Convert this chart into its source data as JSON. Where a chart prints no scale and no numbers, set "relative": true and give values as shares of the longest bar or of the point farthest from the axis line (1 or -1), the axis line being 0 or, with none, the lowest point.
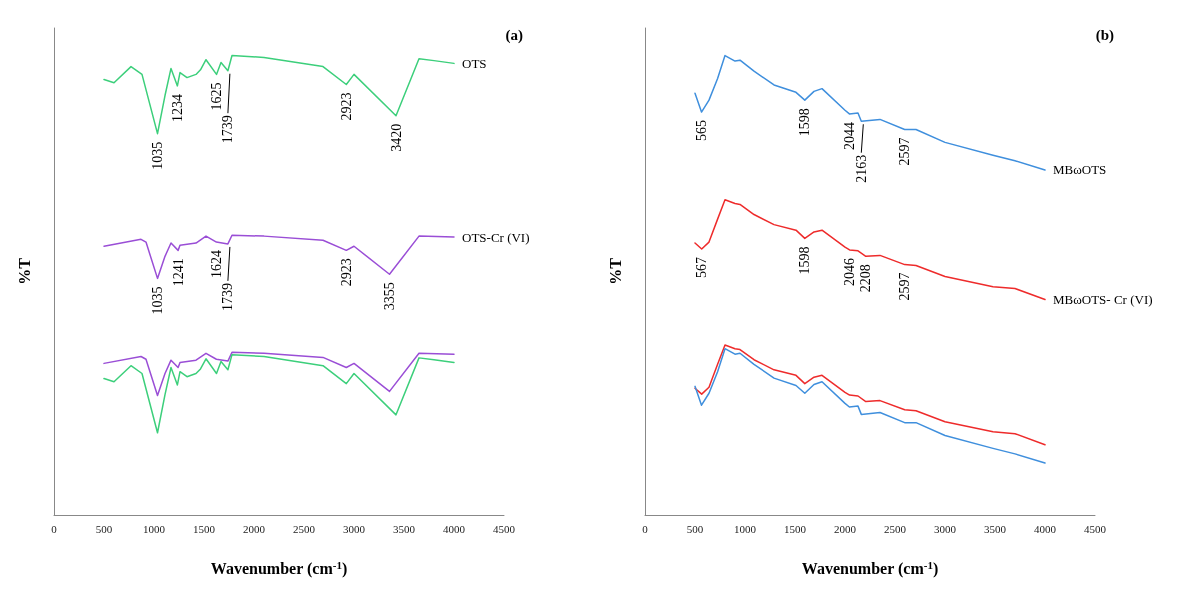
{
  "chart_data": [
    {
      "type": "line",
      "title": "(a)",
      "xlabel": "Wavenumber (cm$^{-1}$)",
      "ylabel": "%T",
      "relative": true,
      "xlim": [
        0,
        4500
      ],
      "xticks": [
        0,
        500,
        1000,
        1500,
        2000,
        2500,
        3000,
        3500,
        4000,
        4500
      ],
      "grid": false,
      "legend": false,
      "marker": "none",
      "series": [
        {
          "name": "OTS",
          "color": "#3ccf7b",
          "x": [
            500,
            600,
            770,
            880,
            1035,
            1110,
            1170,
            1234,
            1260,
            1330,
            1420,
            1465,
            1520,
            1625,
            1670,
            1739,
            1780,
            2100,
            2690,
            2923,
            3000,
            3420,
            3650,
            3800,
            4000
          ],
          "values": [
            0.948,
            0.941,
            0.976,
            0.959,
            0.83,
            0.913,
            0.972,
            0.934,
            0.963,
            0.952,
            0.959,
            0.969,
            0.991,
            0.959,
            0.985,
            0.967,
            1,
            0.996,
            0.976,
            0.937,
            0.959,
            0.869,
            0.993,
            0.989,
            0.983
          ]
        },
        {
          "name": "OTS-Cr (VI)",
          "color": "#9a4ed6",
          "x": [
            500,
            870,
            920,
            1035,
            1110,
            1170,
            1241,
            1260,
            1420,
            1520,
            1624,
            1739,
            1780,
            2100,
            2690,
            2923,
            3000,
            3355,
            3650,
            4000
          ],
          "values": [
            0.585,
            0.6,
            0.594,
            0.515,
            0.563,
            0.592,
            0.576,
            0.587,
            0.592,
            0.607,
            0.594,
            0.59,
            0.609,
            0.607,
            0.598,
            0.576,
            0.585,
            0.524,
            0.607,
            0.605
          ]
        },
        {
          "color": "#9a4ed6",
          "x": [
            500,
            870,
            920,
            1035,
            1110,
            1170,
            1241,
            1260,
            1420,
            1520,
            1624,
            1739,
            1780,
            2100,
            2690,
            2923,
            3000,
            3355,
            3650,
            4000
          ],
          "values": [
            0.33,
            0.345,
            0.339,
            0.26,
            0.308,
            0.337,
            0.321,
            0.332,
            0.337,
            0.352,
            0.339,
            0.335,
            0.354,
            0.352,
            0.343,
            0.321,
            0.33,
            0.269,
            0.352,
            0.35
          ]
        },
        {
          "color": "#3ccf7b",
          "x": [
            500,
            600,
            770,
            880,
            1035,
            1110,
            1170,
            1234,
            1260,
            1330,
            1420,
            1465,
            1520,
            1625,
            1670,
            1739,
            1780,
            2100,
            2690,
            2923,
            3000,
            3420,
            3650,
            3800,
            4000
          ],
          "values": [
            0.297,
            0.29,
            0.325,
            0.308,
            0.179,
            0.262,
            0.321,
            0.283,
            0.312,
            0.301,
            0.308,
            0.318,
            0.34,
            0.308,
            0.334,
            0.316,
            0.349,
            0.345,
            0.325,
            0.286,
            0.308,
            0.218,
            0.342,
            0.338,
            0.332
          ]
        }
      ],
      "annotations": [
        {
          "text": "1035",
          "x": 1035,
          "y": 0.83
        },
        {
          "text": "1234",
          "x": 1234,
          "y": 0.934
        },
        {
          "text": "1625",
          "x": 1625,
          "y": 0.959
        },
        {
          "text": "1739",
          "x": 1739,
          "y": 0.967
        },
        {
          "text": "2923",
          "x": 2923,
          "y": 0.937
        },
        {
          "text": "3420",
          "x": 3420,
          "y": 0.869
        },
        {
          "text": "1035",
          "x": 1035,
          "y": 0.515
        },
        {
          "text": "1241",
          "x": 1241,
          "y": 0.576
        },
        {
          "text": "1624",
          "x": 1624,
          "y": 0.594
        },
        {
          "text": "1739",
          "x": 1739,
          "y": 0.59
        },
        {
          "text": "2923",
          "x": 2923,
          "y": 0.576
        },
        {
          "text": "3355",
          "x": 3355,
          "y": 0.524
        }
      ]
    },
    {
      "type": "line",
      "title": "(b)",
      "xlabel": "Wavenumber (cm$^{-1}$)",
      "ylabel": "%T",
      "relative": true,
      "xlim": [
        0,
        4500
      ],
      "xticks": [
        0,
        500,
        1000,
        1500,
        2000,
        2500,
        3000,
        3500,
        4000,
        4500
      ],
      "grid": false,
      "legend": false,
      "marker": "none",
      "series": [
        {
          "name": "MBωOTS",
          "color": "#3f8fdd",
          "x": [
            500,
            565,
            640,
            726,
            800,
            900,
            950,
            1090,
            1290,
            1510,
            1598,
            1690,
            1770,
            2000,
            2044,
            2130,
            2163,
            2350,
            2597,
            2710,
            3000,
            3480,
            3700,
            4000
          ],
          "values": [
            0.918,
            0.877,
            0.903,
            0.95,
            1,
            0.988,
            0.99,
            0.966,
            0.936,
            0.92,
            0.903,
            0.922,
            0.928,
            0.881,
            0.873,
            0.875,
            0.857,
            0.861,
            0.839,
            0.839,
            0.811,
            0.783,
            0.771,
            0.751
          ]
        },
        {
          "name": "MBωOTS- Cr (VI)",
          "color": "#ee2b2b",
          "x": [
            500,
            567,
            640,
            726,
            800,
            900,
            950,
            1090,
            1290,
            1510,
            1598,
            1690,
            1770,
            2000,
            2046,
            2130,
            2208,
            2350,
            2597,
            2710,
            3000,
            3480,
            3700,
            4000
          ],
          "values": [
            0.592,
            0.579,
            0.594,
            0.644,
            0.686,
            0.678,
            0.676,
            0.654,
            0.632,
            0.62,
            0.602,
            0.616,
            0.62,
            0.583,
            0.577,
            0.575,
            0.563,
            0.565,
            0.545,
            0.543,
            0.519,
            0.497,
            0.493,
            0.469
          ]
        },
        {
          "color": "#ee2b2b",
          "x": [
            500,
            567,
            640,
            726,
            800,
            900,
            950,
            1090,
            1290,
            1510,
            1598,
            1690,
            1770,
            2000,
            2046,
            2130,
            2208,
            2350,
            2597,
            2710,
            3000,
            3480,
            3700,
            4000
          ],
          "values": [
            0.276,
            0.263,
            0.278,
            0.328,
            0.37,
            0.362,
            0.36,
            0.338,
            0.316,
            0.304,
            0.286,
            0.3,
            0.304,
            0.267,
            0.261,
            0.259,
            0.247,
            0.249,
            0.229,
            0.227,
            0.203,
            0.181,
            0.177,
            0.153
          ]
        },
        {
          "color": "#3f8fdd",
          "x": [
            500,
            565,
            640,
            726,
            800,
            900,
            950,
            1090,
            1290,
            1510,
            1598,
            1690,
            1770,
            2000,
            2044,
            2130,
            2163,
            2350,
            2597,
            2710,
            3000,
            3480,
            3700,
            4000
          ],
          "values": [
            0.28,
            0.239,
            0.265,
            0.312,
            0.362,
            0.35,
            0.352,
            0.328,
            0.298,
            0.282,
            0.265,
            0.284,
            0.29,
            0.243,
            0.235,
            0.237,
            0.219,
            0.223,
            0.201,
            0.201,
            0.173,
            0.145,
            0.133,
            0.113
          ]
        }
      ],
      "annotations": [
        {
          "text": "565",
          "x": 565,
          "y": 0.877
        },
        {
          "text": "1598",
          "x": 1598,
          "y": 0.903
        },
        {
          "text": "2044",
          "x": 2044,
          "y": 0.873
        },
        {
          "text": "2163",
          "x": 2163,
          "y": 0.857
        },
        {
          "text": "2597",
          "x": 2597,
          "y": 0.839
        },
        {
          "text": "567",
          "x": 567,
          "y": 0.579
        },
        {
          "text": "1598",
          "x": 1598,
          "y": 0.602
        },
        {
          "text": "2046",
          "x": 2046,
          "y": 0.577
        },
        {
          "text": "2208",
          "x": 2208,
          "y": 0.563
        },
        {
          "text": "2597",
          "x": 2597,
          "y": 0.545
        }
      ]
    }
  ]
}
